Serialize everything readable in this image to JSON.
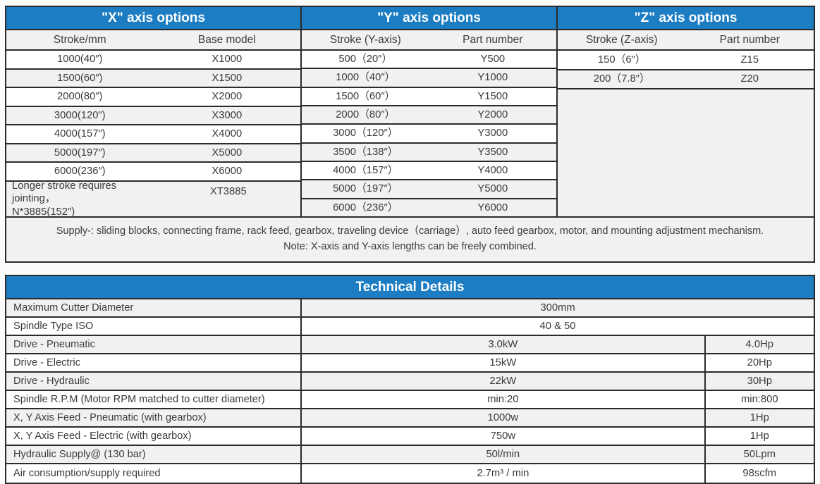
{
  "colors": {
    "header_blue": "#1c7dc3",
    "row_shade": "#f1f1f1",
    "border": "#2b2b2b",
    "text": "#3b3b3b"
  },
  "axis_section": {
    "tables": [
      {
        "title": "\"X\" axis options",
        "columns": [
          "Stroke/mm",
          "Base model"
        ],
        "rows": [
          {
            "c1": "1000(40″)",
            "c2": "X1000",
            "shade": false
          },
          {
            "c1": "1500(60″)",
            "c2": "X1500",
            "shade": true
          },
          {
            "c1": "2000(80″)",
            "c2": "X2000",
            "shade": false
          },
          {
            "c1": "3000(120″)",
            "c2": "X3000",
            "shade": true
          },
          {
            "c1": "4000(157″)",
            "c2": "X4000",
            "shade": false
          },
          {
            "c1": "5000(197″)",
            "c2": "X5000",
            "shade": true
          },
          {
            "c1": "6000(236″)",
            "c2": "X6000",
            "shade": false
          },
          {
            "c1": "Longer stroke requires jointing，\nN*3885(152″)",
            "c2": "XT3885",
            "shade": true,
            "tall": true
          }
        ]
      },
      {
        "title": "\"Y\" axis options",
        "columns": [
          "Stroke (Y-axis)",
          "Part number"
        ],
        "rows": [
          {
            "c1": "500（20″）",
            "c2": "Y500",
            "shade": false
          },
          {
            "c1": "1000（40″）",
            "c2": "Y1000",
            "shade": true
          },
          {
            "c1": "1500（60″）",
            "c2": "Y1500",
            "shade": false
          },
          {
            "c1": "2000（80″）",
            "c2": "Y2000",
            "shade": true
          },
          {
            "c1": "3000（120″）",
            "c2": "Y3000",
            "shade": false
          },
          {
            "c1": "3500（138″）",
            "c2": "Y3500",
            "shade": true
          },
          {
            "c1": "4000（157″）",
            "c2": "Y4000",
            "shade": false
          },
          {
            "c1": "5000（197″）",
            "c2": "Y5000",
            "shade": true
          },
          {
            "c1": "6000（236″）",
            "c2": "Y6000",
            "shade": true
          }
        ]
      },
      {
        "title": "\"Z\" axis options",
        "columns": [
          "Stroke (Z-axis)",
          "Part number"
        ],
        "filler": true,
        "rows": [
          {
            "c1": "150（6″）",
            "c2": "Z15",
            "shade": false
          },
          {
            "c1": "200（7.8″）",
            "c2": "Z20",
            "shade": true
          }
        ]
      }
    ],
    "note_line1": "Supply-: sliding blocks, connecting frame, rack feed, gearbox, traveling device（carriage）, auto feed gearbox, motor, and mounting adjustment mechanism.",
    "note_line2": "Note: X-axis and Y-axis lengths can be freely combined."
  },
  "tech_section": {
    "title": "Technical Details",
    "rows": [
      {
        "label": "Maximum Cutter Diameter",
        "value": "300mm",
        "span": true,
        "shade": true
      },
      {
        "label": "Spindle Type ISO",
        "value": "40 & 50",
        "span": true,
        "shade": false
      },
      {
        "label": "Drive - Pneumatic",
        "v1": "3.0kW",
        "v2": "4.0Hp",
        "shade": true
      },
      {
        "label": "Drive - Electric",
        "v1": "15kW",
        "v2": "20Hp",
        "shade": false
      },
      {
        "label": "Drive - Hydraulic",
        "v1": "22kW",
        "v2": "30Hp",
        "shade": true
      },
      {
        "label": "Spindle R.P.M (Motor RPM matched to cutter diameter)",
        "v1": "min:20",
        "v2": "min:800",
        "shade": false
      },
      {
        "label": "X, Y Axis Feed - Pneumatic (with gearbox)",
        "v1": "1000w",
        "v2": "1Hp",
        "shade": true
      },
      {
        "label": "X, Y Axis Feed - Electric (with gearbox)",
        "v1": "750w",
        "v2": "1Hp",
        "shade": false
      },
      {
        "label": "Hydraulic Supply@ (130 bar)",
        "v1": "50l/min",
        "v2": "50Lpm",
        "shade": true
      },
      {
        "label": "Air consumption/supply required",
        "v1": "2.7m³ / min",
        "v2": "98scfm",
        "shade": false
      }
    ]
  }
}
